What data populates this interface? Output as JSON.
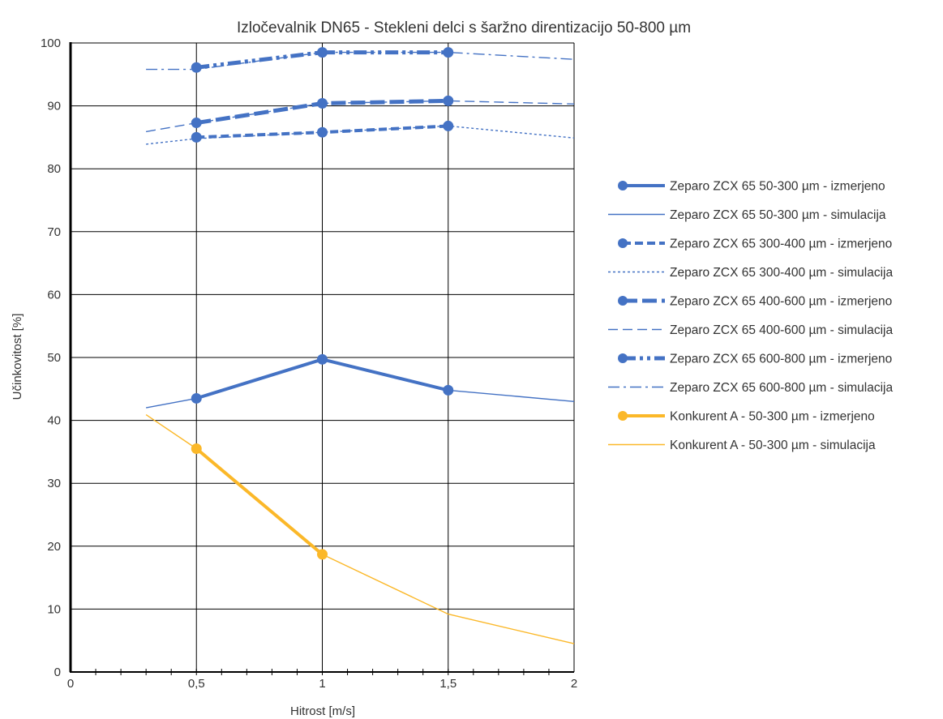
{
  "chart_data": {
    "type": "line",
    "title": "Izločevalnik DN65 - Stekleni delci s šaržno direntizacijo 50-800 µm",
    "xlabel": "Hitrost [m/s]",
    "ylabel": "Učinkovitost [%]",
    "xlim": [
      0,
      2
    ],
    "ylim": [
      0,
      100
    ],
    "x_ticks": [
      "0",
      "0,5",
      "1",
      "1,5",
      "2"
    ],
    "y_ticks": [
      "0",
      "10",
      "20",
      "30",
      "40",
      "50",
      "60",
      "70",
      "80",
      "90",
      "100"
    ],
    "grid": true,
    "legend_position": "right",
    "colors": {
      "blue": "#4472c4",
      "orange": "#fbb829"
    },
    "series": [
      {
        "name": "Zeparo ZCX 65 50-300 µm - izmerjeno",
        "color": "#4472c4",
        "style": "solid-thick-markers",
        "x": [
          0.5,
          1.0,
          1.5
        ],
        "y": [
          43.5,
          49.7,
          44.8
        ]
      },
      {
        "name": "Zeparo ZCX 65 50-300 µm - simulacija",
        "color": "#4472c4",
        "style": "solid-thin",
        "x": [
          0.3,
          0.5,
          1.0,
          1.5,
          2.0
        ],
        "y": [
          42.0,
          43.5,
          49.7,
          44.8,
          43.0
        ]
      },
      {
        "name": "Zeparo ZCX 65 300-400 µm - izmerjeno",
        "color": "#4472c4",
        "style": "dash-thick-markers",
        "x": [
          0.5,
          1.0,
          1.5
        ],
        "y": [
          85.0,
          85.8,
          86.8
        ]
      },
      {
        "name": "Zeparo ZCX 65 300-400 µm - simulacija",
        "color": "#4472c4",
        "style": "dot-thin",
        "x": [
          0.3,
          0.5,
          1.0,
          1.5,
          2.0
        ],
        "y": [
          83.9,
          84.8,
          85.8,
          86.8,
          84.9
        ]
      },
      {
        "name": "Zeparo ZCX 65 400-600 µm - izmerjeno",
        "color": "#4472c4",
        "style": "longdash-thick-markers",
        "x": [
          0.5,
          1.0,
          1.5
        ],
        "y": [
          87.3,
          90.4,
          90.8
        ]
      },
      {
        "name": "Zeparo ZCX 65 400-600 µm - simulacija",
        "color": "#4472c4",
        "style": "dash-thin",
        "x": [
          0.3,
          0.5,
          1.0,
          1.5,
          2.0
        ],
        "y": [
          85.9,
          87.3,
          90.4,
          90.8,
          90.3
        ]
      },
      {
        "name": "Zeparo ZCX 65 600-800 µm - izmerjeno",
        "color": "#4472c4",
        "style": "dashdotdot-thick-markers",
        "x": [
          0.5,
          1.0,
          1.5
        ],
        "y": [
          96.1,
          98.5,
          98.5
        ]
      },
      {
        "name": "Zeparo ZCX 65 600-800 µm - simulacija",
        "color": "#4472c4",
        "style": "dashdot-thin",
        "x": [
          0.3,
          0.5,
          1.0,
          1.5,
          2.0
        ],
        "y": [
          95.8,
          95.8,
          98.5,
          98.5,
          97.4
        ]
      },
      {
        "name": "Konkurent A - 50-300 µm - izmerjeno",
        "color": "#fbb829",
        "style": "solid-thick-markers",
        "x": [
          0.5,
          1.0
        ],
        "y": [
          35.5,
          18.7
        ]
      },
      {
        "name": "Konkurent A - 50-300 µm - simulacija",
        "color": "#fbb829",
        "style": "solid-thin",
        "x": [
          0.3,
          0.5,
          1.0,
          1.5,
          2.0
        ],
        "y": [
          40.9,
          35.5,
          18.7,
          9.2,
          4.5
        ]
      }
    ]
  }
}
